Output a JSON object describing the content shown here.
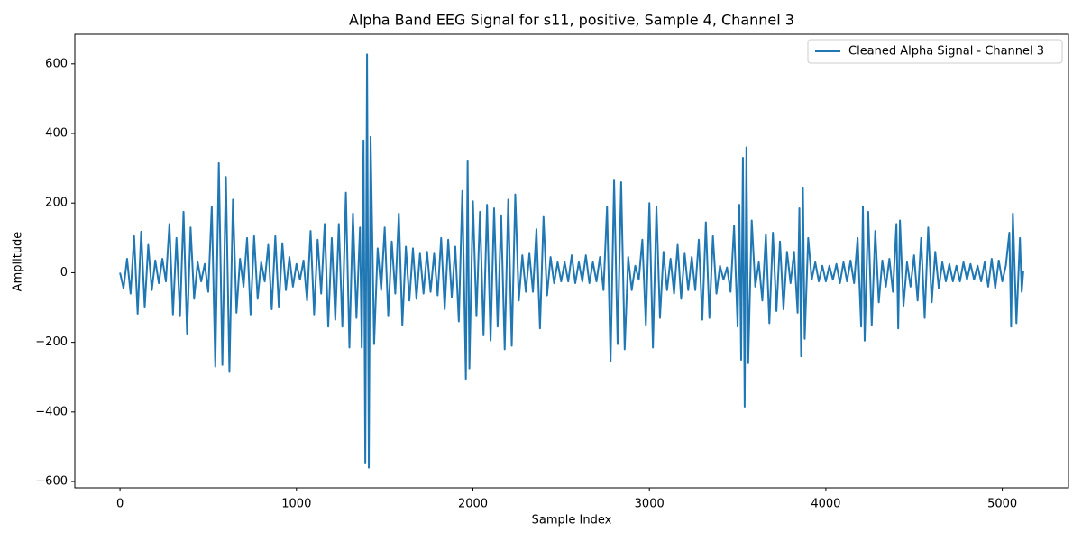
{
  "chart_data": {
    "type": "line",
    "title": "Alpha Band EEG Signal for s11, positive, Sample 4, Channel 3",
    "x_label": "Sample Index",
    "y_label": "Amplitude",
    "legend": "upper right",
    "grid": false,
    "xlim": [
      -256,
      5375
    ],
    "ylim": [
      -618,
      685
    ],
    "xticks": [
      0,
      1000,
      2000,
      3000,
      4000,
      5000
    ],
    "yticks": [
      {
        "value": -600,
        "label": "−600"
      },
      {
        "value": -400,
        "label": "−400"
      },
      {
        "value": -200,
        "label": "−200"
      },
      0,
      200,
      400,
      600
    ],
    "x": [
      0,
      20,
      40,
      60,
      80,
      100,
      120,
      140,
      160,
      180,
      200,
      220,
      240,
      260,
      280,
      300,
      320,
      340,
      360,
      380,
      400,
      420,
      440,
      460,
      480,
      500,
      520,
      540,
      560,
      580,
      600,
      620,
      640,
      660,
      680,
      700,
      720,
      740,
      760,
      780,
      800,
      820,
      840,
      860,
      880,
      900,
      920,
      940,
      960,
      980,
      1000,
      1020,
      1040,
      1060,
      1080,
      1100,
      1120,
      1140,
      1160,
      1180,
      1200,
      1220,
      1240,
      1260,
      1280,
      1300,
      1320,
      1340,
      1360,
      1370,
      1380,
      1390,
      1400,
      1410,
      1420,
      1440,
      1460,
      1480,
      1500,
      1520,
      1540,
      1560,
      1580,
      1600,
      1620,
      1640,
      1660,
      1680,
      1700,
      1720,
      1740,
      1760,
      1780,
      1800,
      1820,
      1840,
      1860,
      1880,
      1900,
      1920,
      1940,
      1960,
      1970,
      1980,
      2000,
      2020,
      2040,
      2060,
      2080,
      2100,
      2120,
      2140,
      2160,
      2180,
      2200,
      2220,
      2240,
      2260,
      2280,
      2300,
      2320,
      2340,
      2360,
      2380,
      2400,
      2420,
      2440,
      2460,
      2480,
      2500,
      2520,
      2540,
      2560,
      2580,
      2600,
      2620,
      2640,
      2660,
      2680,
      2700,
      2720,
      2740,
      2760,
      2780,
      2800,
      2820,
      2840,
      2860,
      2880,
      2900,
      2920,
      2940,
      2960,
      2980,
      3000,
      3020,
      3040,
      3060,
      3080,
      3100,
      3120,
      3140,
      3160,
      3180,
      3200,
      3220,
      3240,
      3260,
      3280,
      3300,
      3320,
      3340,
      3360,
      3380,
      3400,
      3420,
      3440,
      3460,
      3480,
      3500,
      3510,
      3520,
      3530,
      3540,
      3550,
      3560,
      3580,
      3600,
      3620,
      3640,
      3660,
      3680,
      3700,
      3720,
      3740,
      3760,
      3780,
      3800,
      3820,
      3840,
      3850,
      3860,
      3870,
      3880,
      3900,
      3920,
      3940,
      3960,
      3980,
      4000,
      4020,
      4040,
      4060,
      4080,
      4100,
      4120,
      4140,
      4160,
      4180,
      4200,
      4210,
      4220,
      4240,
      4260,
      4280,
      4300,
      4320,
      4340,
      4360,
      4380,
      4400,
      4410,
      4420,
      4440,
      4460,
      4480,
      4500,
      4520,
      4540,
      4560,
      4580,
      4600,
      4620,
      4640,
      4660,
      4680,
      4700,
      4720,
      4740,
      4760,
      4780,
      4800,
      4820,
      4840,
      4860,
      4880,
      4900,
      4920,
      4940,
      4960,
      4980,
      5000,
      5020,
      5040,
      5050,
      5060,
      5080,
      5100,
      5110,
      5119
    ],
    "series": [
      {
        "name": "Cleaned Alpha Signal - Channel 3",
        "color": "#1f77b4",
        "values": [
          0,
          -45,
          40,
          -60,
          105,
          -118,
          118,
          -100,
          80,
          -50,
          35,
          -30,
          40,
          -25,
          140,
          -120,
          100,
          -125,
          175,
          -175,
          130,
          -75,
          30,
          -25,
          25,
          -55,
          190,
          -270,
          315,
          -265,
          275,
          -285,
          210,
          -115,
          40,
          -40,
          100,
          -120,
          105,
          -75,
          30,
          -25,
          80,
          -105,
          105,
          -100,
          85,
          -50,
          45,
          -40,
          25,
          -20,
          35,
          -80,
          120,
          -120,
          95,
          -60,
          140,
          -155,
          100,
          -135,
          140,
          -155,
          230,
          -215,
          170,
          -130,
          130,
          -215,
          380,
          -548,
          627,
          -560,
          390,
          -205,
          70,
          -50,
          130,
          -125,
          90,
          -60,
          170,
          -150,
          75,
          -80,
          70,
          -75,
          55,
          -60,
          60,
          -55,
          55,
          -65,
          100,
          -105,
          95,
          -70,
          75,
          -140,
          235,
          -305,
          320,
          -275,
          205,
          -125,
          175,
          -180,
          195,
          -195,
          185,
          -155,
          165,
          -220,
          210,
          -210,
          225,
          -80,
          50,
          -55,
          55,
          -55,
          125,
          -160,
          160,
          -65,
          45,
          -30,
          30,
          -25,
          30,
          -25,
          50,
          -30,
          30,
          -25,
          50,
          -30,
          30,
          -25,
          45,
          -50,
          190,
          -255,
          265,
          -205,
          260,
          -220,
          45,
          -50,
          20,
          -20,
          95,
          -150,
          200,
          -215,
          190,
          -130,
          60,
          -50,
          40,
          -60,
          80,
          -75,
          55,
          -50,
          45,
          -50,
          95,
          -135,
          145,
          -130,
          105,
          -60,
          20,
          -20,
          15,
          -55,
          135,
          -155,
          195,
          -250,
          330,
          -385,
          360,
          -260,
          150,
          -40,
          30,
          -80,
          110,
          -145,
          115,
          -110,
          90,
          -105,
          60,
          -30,
          60,
          -115,
          185,
          -240,
          245,
          -190,
          100,
          -20,
          30,
          -25,
          20,
          -25,
          20,
          -20,
          25,
          -30,
          30,
          -25,
          35,
          -30,
          100,
          -155,
          190,
          -195,
          175,
          -150,
          120,
          -85,
          35,
          -40,
          40,
          -55,
          140,
          -160,
          150,
          -95,
          30,
          -40,
          50,
          -80,
          100,
          -130,
          130,
          -85,
          60,
          -45,
          30,
          -25,
          25,
          -25,
          20,
          -25,
          30,
          -20,
          25,
          -20,
          20,
          -25,
          30,
          -40,
          40,
          -45,
          35,
          -25,
          20,
          115,
          -155,
          170,
          -145,
          100,
          -55,
          5
        ]
      }
    ]
  }
}
